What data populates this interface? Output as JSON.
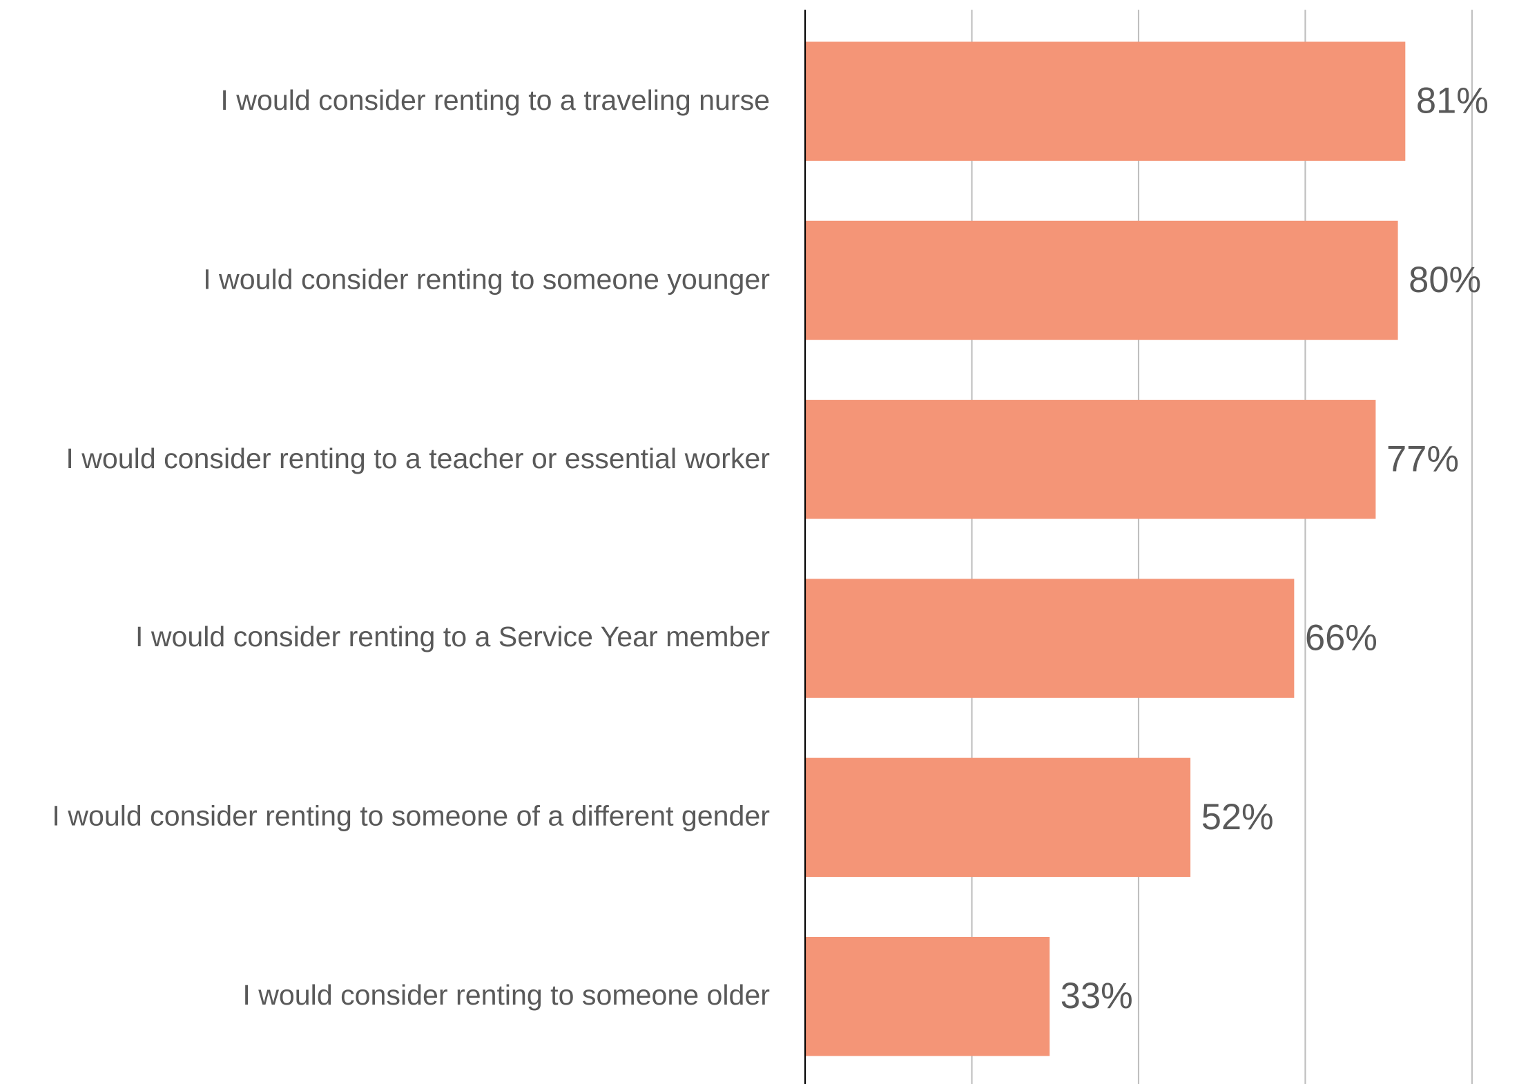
{
  "chart_data": {
    "type": "barh",
    "categories": [
      "I would consider renting to a traveling nurse",
      "I would consider renting to someone younger",
      "I would consider renting to a teacher or essential worker",
      "I would consider renting to a Service Year member",
      "I would consider renting to someone of a different gender",
      "I would consider renting to someone older"
    ],
    "values": [
      81,
      80,
      77,
      66,
      52,
      33
    ],
    "value_labels": [
      "81%",
      "80%",
      "77%",
      "66%",
      "52%",
      "33%"
    ],
    "color": "#f49577",
    "xlim": [
      0,
      90
    ],
    "xticks": [
      0,
      22.5,
      45,
      67.5,
      90
    ],
    "grid": true
  }
}
